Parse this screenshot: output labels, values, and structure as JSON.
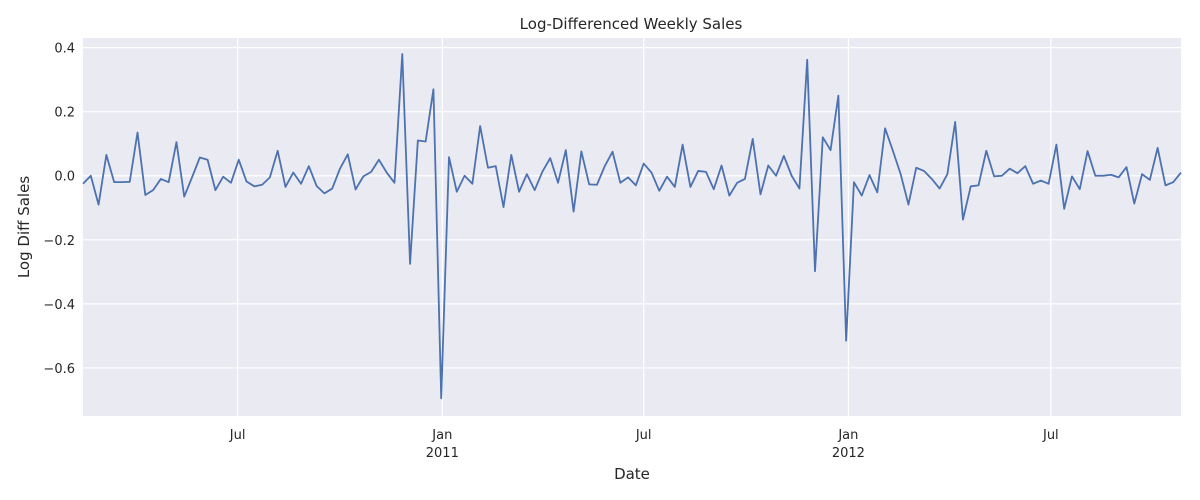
{
  "chart_data": {
    "type": "line",
    "title": "Log-Differenced Weekly Sales",
    "xlabel": "Date",
    "ylabel": "Log Diff Sales",
    "grid": true,
    "legend": "none",
    "style": {
      "background": "#eaeaf2",
      "grid_color": "#ffffff",
      "line_color": "#4c72b0"
    },
    "x_range": [
      "2010-02-12",
      "2012-10-26"
    ],
    "ylim": [
      -0.75,
      0.43
    ],
    "y_ticks": [
      {
        "value": 0.4,
        "label": "0.4"
      },
      {
        "value": 0.2,
        "label": "0.2"
      },
      {
        "value": 0.0,
        "label": "0.0"
      },
      {
        "value": -0.2,
        "label": "−0.2"
      },
      {
        "value": -0.4,
        "label": "−0.4"
      },
      {
        "value": -0.6,
        "label": "−0.6"
      }
    ],
    "x_ticks": [
      {
        "date": "2010-07-01",
        "label": "Jul",
        "sublabel": ""
      },
      {
        "date": "2011-01-01",
        "label": "Jan",
        "sublabel": "2011"
      },
      {
        "date": "2011-07-01",
        "label": "Jul",
        "sublabel": ""
      },
      {
        "date": "2012-01-01",
        "label": "Jan",
        "sublabel": "2012"
      },
      {
        "date": "2012-07-01",
        "label": "Jul",
        "sublabel": ""
      }
    ],
    "series": [
      {
        "x_start": "2010-02-12",
        "x_step_days": 7,
        "values": [
          -0.025,
          0.0,
          -0.09,
          0.065,
          -0.02,
          -0.02,
          -0.019,
          0.135,
          -0.06,
          -0.045,
          -0.01,
          -0.02,
          0.105,
          -0.065,
          -0.005,
          0.057,
          0.05,
          -0.045,
          -0.003,
          -0.022,
          0.05,
          -0.018,
          -0.033,
          -0.028,
          -0.005,
          0.078,
          -0.035,
          0.01,
          -0.025,
          0.03,
          -0.032,
          -0.055,
          -0.04,
          0.022,
          0.067,
          -0.043,
          -0.002,
          0.012,
          0.05,
          0.01,
          -0.022,
          0.38,
          -0.275,
          0.11,
          0.107,
          0.27,
          -0.695,
          0.058,
          -0.05,
          0.0,
          -0.025,
          0.155,
          0.025,
          0.03,
          -0.098,
          0.065,
          -0.05,
          0.005,
          -0.045,
          0.013,
          0.055,
          -0.022,
          0.08,
          -0.112,
          0.076,
          -0.027,
          -0.028,
          0.03,
          0.075,
          -0.022,
          -0.005,
          -0.03,
          0.038,
          0.01,
          -0.047,
          -0.003,
          -0.035,
          0.097,
          -0.035,
          0.015,
          0.012,
          -0.042,
          0.032,
          -0.062,
          -0.022,
          -0.01,
          0.115,
          -0.058,
          0.032,
          0.0,
          0.062,
          0.0,
          -0.04,
          0.362,
          -0.298,
          0.12,
          0.08,
          0.25,
          -0.515,
          -0.02,
          -0.062,
          0.002,
          -0.052,
          0.148,
          0.078,
          0.005,
          -0.09,
          0.025,
          0.015,
          -0.01,
          -0.04,
          0.005,
          0.168,
          -0.137,
          -0.033,
          -0.03,
          0.078,
          -0.002,
          0.0,
          0.022,
          0.008,
          0.03,
          -0.025,
          -0.015,
          -0.025,
          0.097,
          -0.103,
          -0.002,
          -0.042,
          0.077,
          0.0,
          0.0,
          0.003,
          -0.005,
          0.027,
          -0.087,
          0.005,
          -0.013,
          0.087,
          -0.03,
          -0.02,
          0.01
        ]
      }
    ]
  }
}
